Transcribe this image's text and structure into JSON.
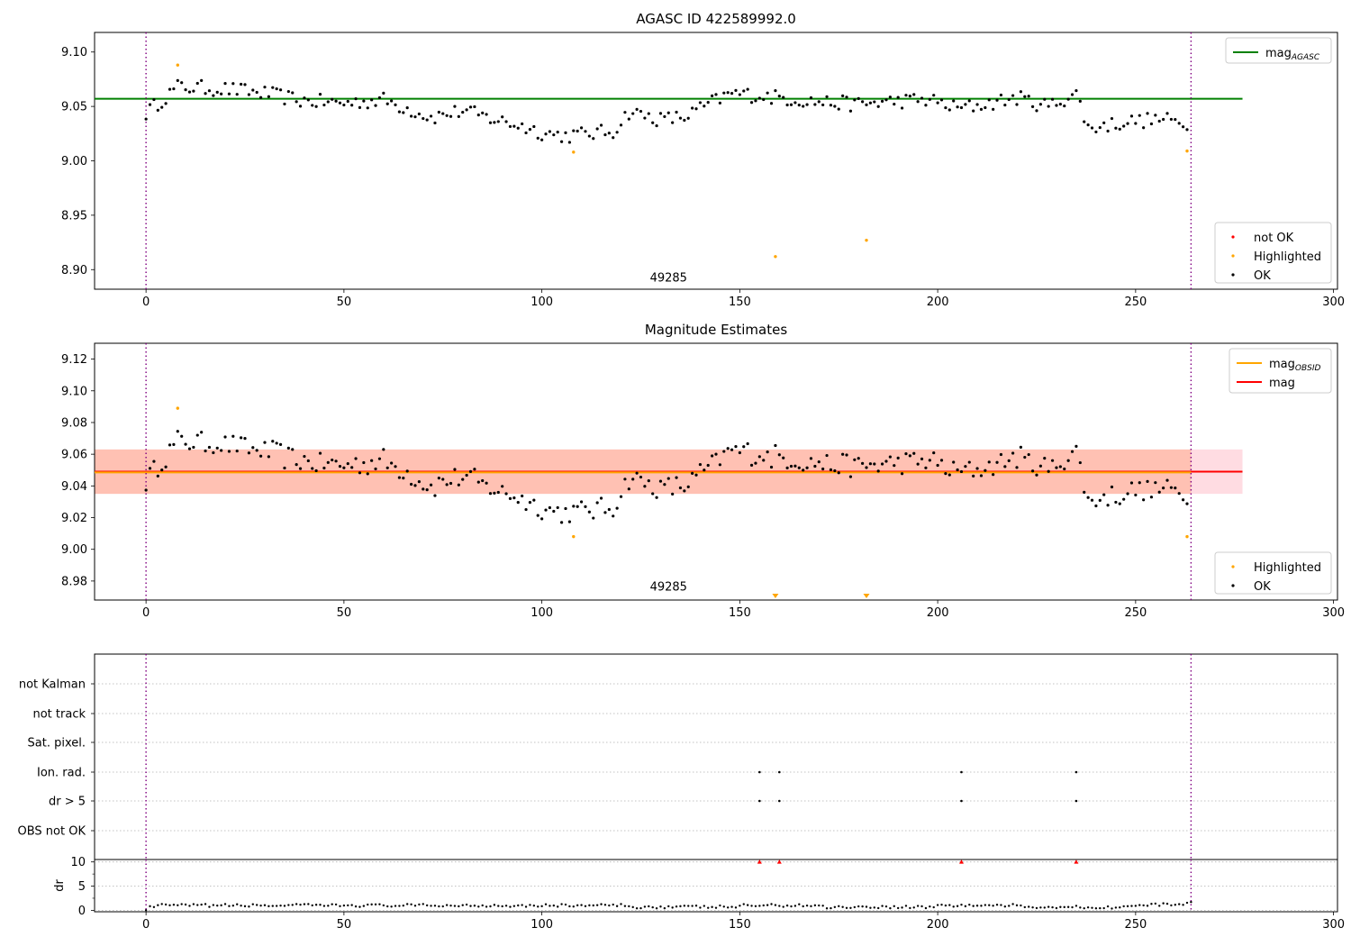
{
  "chart_data": [
    {
      "type": "scatter",
      "title": "AGASC ID 422589992.0",
      "xlim": [
        -13,
        301
      ],
      "ylim": [
        8.882,
        9.118
      ],
      "xticks": [
        0,
        50,
        100,
        150,
        200,
        250,
        300
      ],
      "yticks": [
        8.9,
        8.95,
        9.0,
        9.05,
        9.1
      ],
      "ytick_labels": [
        "8.90",
        "8.95",
        "9.00",
        "9.05",
        "9.10"
      ],
      "obsid_label": {
        "text": "49285",
        "x": 132,
        "y": 8.889
      },
      "vlines": [
        0,
        264
      ],
      "hlines": [
        {
          "name": "magAGASC",
          "y": 9.057,
          "x": [
            -13,
            277
          ],
          "color": "#008000"
        }
      ],
      "legend_upper": [
        {
          "label": "mag",
          "sub": "AGASC",
          "color": "#008000",
          "kind": "line"
        }
      ],
      "legend_lower": [
        {
          "label": "not OK",
          "color": "#ff0000",
          "kind": "dot"
        },
        {
          "label": "Highlighted",
          "color": "#ffa500",
          "kind": "dot"
        },
        {
          "label": "OK",
          "color": "#000000",
          "kind": "dot"
        }
      ],
      "highlighted": [
        [
          8,
          9.088
        ],
        [
          108,
          9.008
        ],
        [
          159,
          8.912
        ],
        [
          182,
          8.927
        ],
        [
          263,
          9.009
        ]
      ]
    },
    {
      "type": "scatter",
      "title": "Magnitude Estimates",
      "xlim": [
        -13,
        301
      ],
      "ylim": [
        8.968,
        9.13
      ],
      "xticks": [
        0,
        50,
        100,
        150,
        200,
        250,
        300
      ],
      "yticks": [
        8.98,
        9.0,
        9.02,
        9.04,
        9.06,
        9.08,
        9.1,
        9.12
      ],
      "ytick_labels": [
        "8.98",
        "9.00",
        "9.02",
        "9.04",
        "9.06",
        "9.08",
        "9.10",
        "9.12"
      ],
      "obsid_label": {
        "text": "49285",
        "x": 132,
        "y": 8.974
      },
      "vlines": [
        0,
        264
      ],
      "bands": [
        {
          "y": [
            9.035,
            9.063
          ],
          "x": [
            -13,
            277
          ],
          "color": "#ffc0cb",
          "opacity": 0.55
        },
        {
          "y": [
            9.035,
            9.063
          ],
          "x": [
            -13,
            264
          ],
          "color": "#ffa07a",
          "opacity": 0.45
        }
      ],
      "hlines": [
        {
          "name": "mag",
          "y": 9.049,
          "x": [
            -13,
            277
          ],
          "color": "#ff0000"
        },
        {
          "name": "magOBSID",
          "y": 9.0485,
          "x": [
            -13,
            264
          ],
          "color": "#ffa500"
        }
      ],
      "legend_upper": [
        {
          "label": "mag",
          "sub": "OBSID",
          "color": "#ffa500",
          "kind": "line"
        },
        {
          "label": "mag",
          "sub": "",
          "color": "#ff0000",
          "kind": "line"
        }
      ],
      "legend_lower": [
        {
          "label": "Highlighted",
          "color": "#ffa500",
          "kind": "dot"
        },
        {
          "label": "OK",
          "color": "#000000",
          "kind": "dot"
        }
      ],
      "highlighted": [
        [
          8,
          9.089
        ],
        [
          108,
          9.008
        ],
        [
          263,
          9.008
        ]
      ],
      "below_range_markers": [
        159,
        182
      ]
    },
    {
      "type": "scatter",
      "title": "",
      "xlim": [
        -13,
        301
      ],
      "xticks": [
        0,
        50,
        100,
        150,
        200,
        250,
        300
      ],
      "flag_categories": [
        "not Kalman",
        "not track",
        "Sat. pixel.",
        "Ion. rad.",
        "dr > 5",
        "OBS not OK"
      ],
      "flag_points": {
        "Ion. rad.": [
          155,
          160,
          206,
          235
        ],
        "dr > 5": [
          155,
          160,
          206,
          235
        ]
      },
      "vlines": [
        0,
        264
      ],
      "dr": {
        "ylabel": "dr",
        "ylim": [
          -0.3,
          10.5
        ],
        "yticks": [
          0,
          5,
          10
        ],
        "minor_yticks": [
          2.5,
          7.5
        ],
        "outliers_x": [
          155,
          160,
          206,
          235
        ],
        "outlier_value": 10
      }
    }
  ]
}
